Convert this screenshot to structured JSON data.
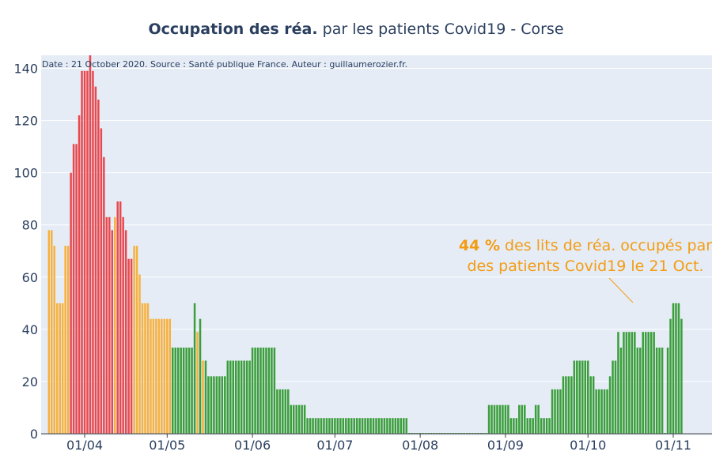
{
  "chart_data": {
    "type": "bar",
    "title_bold": "Occupation des réa.",
    "title_rest": " par les patients Covid19 - Corse",
    "source_note": "Date : 21 October 2020. Source : Santé publique France. Auteur : guillaumerozier.fr.",
    "annotation": {
      "bold": "44  %",
      "line1_rest": " des lits de réa. occupés par",
      "line2": "des patients Covid19 le 21 Oct."
    },
    "x_ticks": [
      "01/04",
      "01/05",
      "01/06",
      "01/07",
      "01/08",
      "01/09",
      "01/10",
      "01/11"
    ],
    "y_ticks": [
      "0",
      "20",
      "40",
      "60",
      "80",
      "100",
      "120",
      "140"
    ],
    "ylim": [
      0,
      145
    ],
    "grid": true,
    "colors": {
      "red": "#e8494f",
      "orange": "#f6b13e",
      "green": "#3b9e3b",
      "annotation": "#f39c12",
      "plot_bg": "#e5ecf6",
      "title": "#2a3f5f",
      "grid": "#ffffff"
    },
    "start_date": "2020-03-19",
    "values": [
      78,
      78,
      72,
      50,
      50,
      50,
      72,
      72,
      100,
      111,
      111,
      122,
      139,
      139,
      139,
      145,
      139,
      133,
      128,
      117,
      106,
      83,
      83,
      78,
      83,
      89,
      89,
      83,
      78,
      67,
      67,
      72,
      72,
      61,
      50,
      50,
      50,
      44,
      44,
      44,
      44,
      44,
      44,
      44,
      44,
      33,
      33,
      33,
      33,
      33,
      33,
      33,
      33,
      50,
      39,
      44,
      28,
      28,
      22,
      22,
      22,
      22,
      22,
      22,
      22,
      28,
      28,
      28,
      28,
      28,
      28,
      28,
      28,
      28,
      33,
      33,
      33,
      33,
      33,
      33,
      33,
      33,
      33,
      17,
      17,
      17,
      17,
      17,
      11,
      11,
      11,
      11,
      11,
      11,
      6,
      6,
      6,
      6,
      6,
      6,
      6,
      6,
      6,
      6,
      6,
      6,
      6,
      6,
      6,
      6,
      6,
      6,
      6,
      6,
      6,
      6,
      6,
      6,
      6,
      6,
      6,
      6,
      6,
      6,
      6,
      6,
      6,
      6,
      6,
      6,
      6,
      0,
      0,
      0,
      0,
      0,
      0,
      0,
      0,
      0,
      0,
      0,
      0,
      0,
      0,
      0,
      0,
      0,
      0,
      0,
      0,
      0,
      0,
      0,
      0,
      0,
      0,
      0,
      0,
      0,
      11,
      11,
      11,
      11,
      11,
      11,
      11,
      11,
      6,
      6,
      6,
      11,
      11,
      11,
      6,
      6,
      6,
      11,
      11,
      6,
      6,
      6,
      6,
      17,
      17,
      17,
      17,
      22,
      22,
      22,
      22,
      28,
      28,
      28,
      28,
      28,
      28,
      22,
      22,
      17,
      17,
      17,
      17,
      17,
      22,
      28,
      28,
      39,
      33,
      39,
      39,
      39,
      39,
      39,
      33,
      33,
      39,
      39,
      39,
      39,
      39,
      33,
      33,
      33,
      0,
      33,
      44,
      50,
      50,
      50,
      44
    ],
    "colors_by_bar": "oooooooorrrrrrrrrrrrrrrrorrrrrroooooooooooooogggggggggogogggggggggggggggggggggggggggggggggggggggggggggggggggggggggggggggggggggggggggggggggggggggggggggggggggggggggggggggggggggggggggggggggggggggggggggggggggggggggggggggggggggggggggggggggggggggoooooo"
  }
}
